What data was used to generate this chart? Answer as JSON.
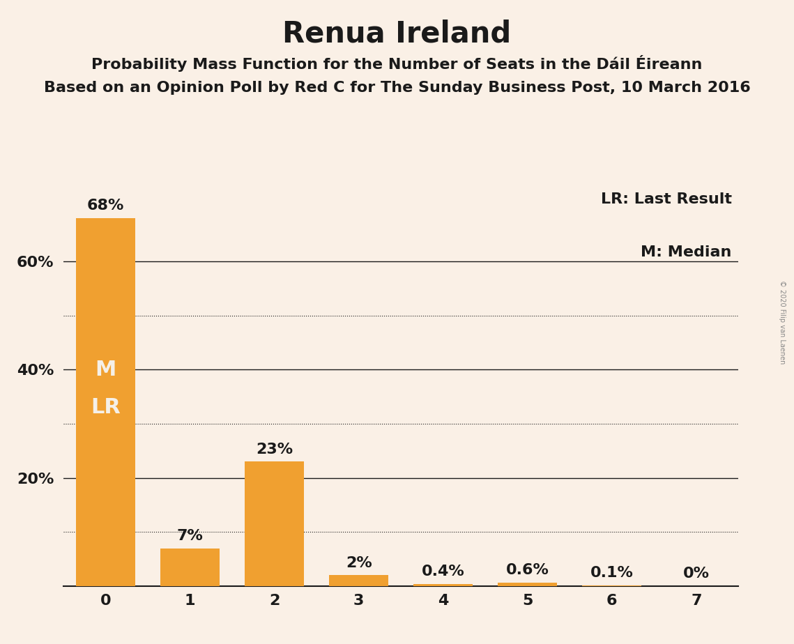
{
  "title": "Renua Ireland",
  "subtitle1": "Probability Mass Function for the Number of Seats in the Dáil Éireann",
  "subtitle2": "Based on an Opinion Poll by Red C for The Sunday Business Post, 10 March 2016",
  "copyright": "© 2020 Filip van Laenen",
  "categories": [
    0,
    1,
    2,
    3,
    4,
    5,
    6,
    7
  ],
  "values": [
    68,
    7,
    23,
    2,
    0.4,
    0.6,
    0.1,
    0
  ],
  "labels": [
    "68%",
    "7%",
    "23%",
    "2%",
    "0.4%",
    "0.6%",
    "0.1%",
    "0%"
  ],
  "bar_color": "#F0A030",
  "background_color": "#FAF0E6",
  "ylim": [
    0,
    75
  ],
  "solid_gridlines": [
    20,
    40,
    60
  ],
  "dotted_gridlines": [
    10,
    30,
    50
  ],
  "legend_lr": "LR: Last Result",
  "legend_m": "M: Median",
  "median_label": "M",
  "lr_label": "LR",
  "label_inside_bar_color": "#F5F0E8",
  "label_outside_bar_color": "#1A1A1A",
  "title_fontsize": 30,
  "subtitle_fontsize": 16,
  "bar_label_fontsize": 16,
  "axis_label_fontsize": 16,
  "legend_fontsize": 16,
  "inside_label_fontsize": 22
}
